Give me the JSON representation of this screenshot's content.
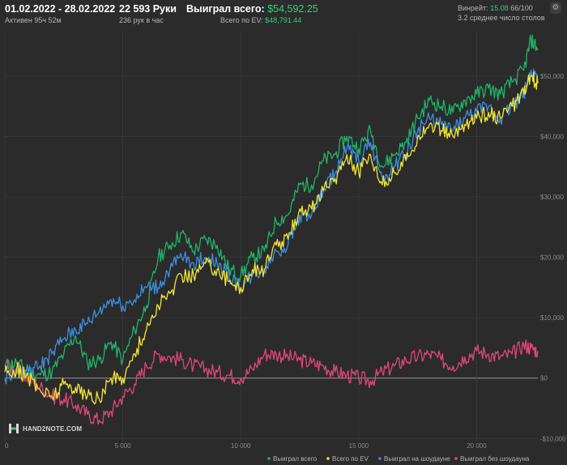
{
  "header": {
    "date_range": "01.02.2022 - 28.02.2022",
    "active_label": "Активен 95ч 52м",
    "hands_label": "22 593 Руки",
    "hands_per_hour_label": "236 рук в час",
    "won_total_label": "Выиграл всего:",
    "won_total_value": "$54,592.25",
    "ev_total_label": "Всего по EV:",
    "ev_total_value": "$48,791.44",
    "winrate_label": "Винрейт:",
    "winrate_value": "15.08",
    "winrate_total": "66/100",
    "tables_label": "3.2 среднее число столов"
  },
  "brand": {
    "logo_text": "HAND2NOTE.COM"
  },
  "colors": {
    "background": "#2b2b2b",
    "grid": "#3b3b3b",
    "zero_line": "#9a9a9a",
    "won_total": "#1fb46a",
    "ev": "#f2e534",
    "showdown": "#3b8fe0",
    "non_showdown": "#e0467a"
  },
  "chart_data": {
    "type": "line",
    "x_ticks": [
      0,
      5000,
      10000,
      15000,
      20000
    ],
    "x_tick_labels": [
      "0",
      "5 000",
      "10 000",
      "15 000",
      "20 000"
    ],
    "y_ticks": [
      -10000,
      0,
      10000,
      20000,
      30000,
      40000,
      50000
    ],
    "y_tick_labels": [
      "-$10,000",
      "$0",
      "$10,000",
      "$20,000",
      "$30,000",
      "$40,000",
      "$50,000"
    ],
    "xlim": [
      0,
      22593
    ],
    "ylim": [
      -10500,
      57500
    ],
    "legend_position": "bottom-right",
    "series": [
      {
        "name": "Выиграл всего",
        "color": "#1fb46a",
        "x": [
          0,
          500,
          1000,
          1500,
          2000,
          2500,
          3000,
          3500,
          4000,
          4500,
          5000,
          5500,
          6000,
          6500,
          7000,
          7500,
          8000,
          8500,
          9000,
          9500,
          10000,
          10500,
          11000,
          11500,
          12000,
          12500,
          13000,
          13500,
          14000,
          14500,
          15000,
          15500,
          16000,
          16500,
          17000,
          17500,
          18000,
          18500,
          19000,
          19500,
          20000,
          20500,
          21000,
          21500,
          22000,
          22300,
          22593
        ],
        "y": [
          2000,
          2500,
          1000,
          500,
          1000,
          4000,
          7000,
          2500,
          3000,
          6000,
          3000,
          8000,
          12000,
          20000,
          22000,
          24000,
          21000,
          23000,
          22000,
          18000,
          17000,
          20000,
          21000,
          26000,
          27000,
          32000,
          32000,
          36000,
          37000,
          40000,
          38000,
          41000,
          35000,
          37000,
          39000,
          43000,
          46000,
          45000,
          44000,
          46000,
          47000,
          48000,
          47000,
          49000,
          51000,
          56000,
          54600
        ]
      },
      {
        "name": "Всего по EV",
        "color": "#f2e534",
        "x": [
          0,
          500,
          1000,
          1500,
          2000,
          2500,
          3000,
          3500,
          4000,
          4500,
          5000,
          5500,
          6000,
          6500,
          7000,
          7500,
          8000,
          8500,
          9000,
          9500,
          10000,
          10500,
          11000,
          11500,
          12000,
          12500,
          13000,
          13500,
          14000,
          14500,
          15000,
          15500,
          16000,
          16500,
          17000,
          17500,
          18000,
          18500,
          19000,
          19500,
          20000,
          20500,
          21000,
          21500,
          22000,
          22300,
          22593
        ],
        "y": [
          1000,
          1500,
          0,
          -2000,
          -3000,
          -1000,
          -1500,
          -3000,
          -3500,
          0,
          0,
          4000,
          8000,
          12000,
          14000,
          17000,
          17000,
          19000,
          18000,
          16000,
          15000,
          18000,
          18000,
          22000,
          23000,
          28000,
          28000,
          31000,
          33000,
          37000,
          34000,
          37000,
          32000,
          34000,
          36000,
          40000,
          42000,
          41000,
          40000,
          42000,
          43000,
          44000,
          43000,
          45000,
          47000,
          50000,
          48800
        ]
      },
      {
        "name": "Выиграл на шоудауне",
        "color": "#3b8fe0",
        "x": [
          0,
          500,
          1000,
          1500,
          2000,
          2500,
          3000,
          3500,
          4000,
          4500,
          5000,
          5500,
          6000,
          6500,
          7000,
          7500,
          8000,
          8500,
          9000,
          9500,
          10000,
          10500,
          11000,
          11500,
          12000,
          12500,
          13000,
          13500,
          14000,
          14500,
          15000,
          15500,
          16000,
          16500,
          17000,
          17500,
          18000,
          18500,
          19000,
          19500,
          20000,
          20500,
          21000,
          21500,
          22000,
          22300,
          22593
        ],
        "y": [
          0,
          1000,
          1000,
          2000,
          4000,
          6500,
          8000,
          9000,
          11000,
          13000,
          12000,
          13000,
          15000,
          15000,
          18000,
          20000,
          19000,
          20000,
          19000,
          17000,
          15000,
          17000,
          18000,
          21000,
          22000,
          27000,
          27000,
          31000,
          34000,
          38000,
          36000,
          39000,
          33000,
          35000,
          37000,
          41000,
          43000,
          42000,
          41000,
          43000,
          44000,
          45000,
          43000,
          45000,
          47000,
          51000,
          50000
        ]
      },
      {
        "name": "Выиграл без шоудауна",
        "color": "#e0467a",
        "x": [
          0,
          500,
          1000,
          1500,
          2000,
          2500,
          3000,
          3500,
          4000,
          4500,
          5000,
          5500,
          6000,
          6500,
          7000,
          7500,
          8000,
          8500,
          9000,
          9500,
          10000,
          10500,
          11000,
          11500,
          12000,
          12500,
          13000,
          13500,
          14000,
          14500,
          15000,
          15500,
          16000,
          16500,
          17000,
          17500,
          18000,
          18500,
          19000,
          19500,
          20000,
          20500,
          21000,
          21500,
          22000,
          22300,
          22593
        ],
        "y": [
          2000,
          1500,
          0,
          -1500,
          -3000,
          -3500,
          -4500,
          -6000,
          -7000,
          -5500,
          -3000,
          -1000,
          2000,
          4000,
          3500,
          3000,
          2000,
          1500,
          1000,
          500,
          0,
          1500,
          4000,
          4000,
          3500,
          3000,
          2500,
          2000,
          1000,
          500,
          0,
          -500,
          1000,
          2000,
          3000,
          3500,
          4000,
          3000,
          2000,
          3500,
          4500,
          4000,
          3500,
          4000,
          5500,
          5000,
          4500
        ]
      }
    ]
  }
}
